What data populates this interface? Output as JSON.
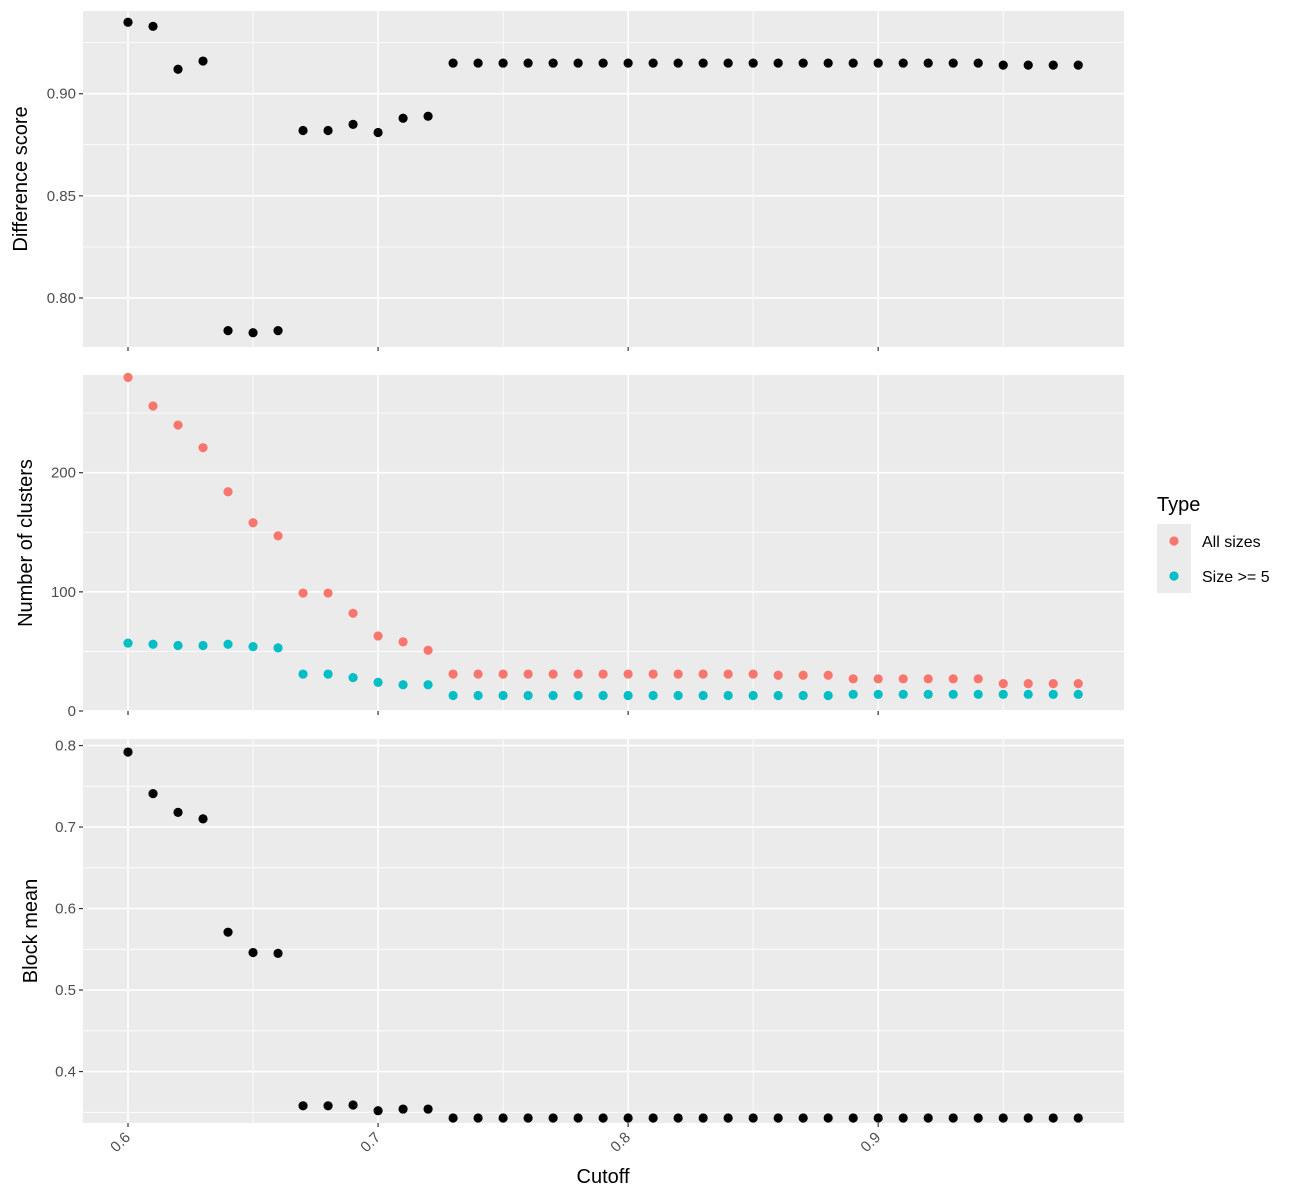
{
  "chart_data": {
    "type": "scatter",
    "xlabel": "Cutoff",
    "xlim": [
      0.582,
      0.9983
    ],
    "x_ticks": [
      0.6,
      0.7,
      0.8,
      0.9
    ],
    "x_tick_labels": [
      "0.6",
      "0.7",
      "0.8",
      "0.9"
    ],
    "x": [
      0.6,
      0.61,
      0.62,
      0.63,
      0.64,
      0.65,
      0.66,
      0.67,
      0.68,
      0.69,
      0.7,
      0.71,
      0.72,
      0.73,
      0.74,
      0.75,
      0.76,
      0.77,
      0.78,
      0.79,
      0.8,
      0.81,
      0.82,
      0.83,
      0.84,
      0.85,
      0.86,
      0.87,
      0.88,
      0.89,
      0.9,
      0.91,
      0.92,
      0.93,
      0.94,
      0.95,
      0.96,
      0.97,
      0.98
    ],
    "grid": true,
    "background": "#ebebeb",
    "panels": [
      {
        "ylabel": "Difference score",
        "ylim": [
          0.776,
          0.9405
        ],
        "y_ticks": [
          0.8,
          0.85,
          0.9
        ],
        "y_tick_labels": [
          "0.80",
          "0.85",
          "0.90"
        ],
        "series": [
          {
            "color": "#000000",
            "values": [
              0.935,
              0.933,
              0.912,
              0.916,
              0.784,
              0.783,
              0.784,
              0.882,
              0.882,
              0.885,
              0.881,
              0.888,
              0.889,
              0.915,
              0.915,
              0.915,
              0.915,
              0.915,
              0.915,
              0.915,
              0.915,
              0.915,
              0.915,
              0.915,
              0.915,
              0.915,
              0.915,
              0.915,
              0.915,
              0.915,
              0.915,
              0.915,
              0.915,
              0.915,
              0.915,
              0.914,
              0.914,
              0.914,
              0.914
            ]
          }
        ]
      },
      {
        "ylabel": "Number of clusters",
        "ylim": [
          0,
          282
        ],
        "y_ticks": [
          0,
          100,
          200
        ],
        "y_tick_labels": [
          "0",
          "100",
          "200"
        ],
        "series": [
          {
            "name": "All sizes",
            "color": "#f8766d",
            "values": [
              280,
              256,
              240,
              221,
              184,
              158,
              147,
              99,
              99,
              82,
              63,
              58,
              51,
              31,
              31,
              31,
              31,
              31,
              31,
              31,
              31,
              31,
              31,
              31,
              31,
              31,
              30,
              30,
              30,
              27,
              27,
              27,
              27,
              27,
              27,
              23,
              23,
              23,
              23
            ]
          },
          {
            "name": "Size >= 5",
            "color": "#00bfc4",
            "values": [
              57,
              56,
              55,
              55,
              56,
              54,
              53,
              31,
              31,
              28,
              24,
              22,
              22,
              13,
              13,
              13,
              13,
              13,
              13,
              13,
              13,
              13,
              13,
              13,
              13,
              13,
              13,
              13,
              13,
              14,
              14,
              14,
              14,
              14,
              14,
              14,
              14,
              14,
              14
            ]
          }
        ]
      },
      {
        "ylabel": "Block mean",
        "ylim": [
          0.3369,
          0.808
        ],
        "y_ticks": [
          0.4,
          0.5,
          0.6,
          0.7,
          0.8
        ],
        "y_tick_labels": [
          "0.4",
          "0.5",
          "0.6",
          "0.7",
          "0.8"
        ],
        "series": [
          {
            "color": "#000000",
            "values": [
              0.792,
              0.741,
              0.718,
              0.71,
              0.571,
              0.546,
              0.545,
              0.358,
              0.358,
              0.359,
              0.352,
              0.354,
              0.354,
              0.343,
              0.343,
              0.343,
              0.343,
              0.343,
              0.343,
              0.343,
              0.343,
              0.343,
              0.343,
              0.343,
              0.343,
              0.343,
              0.343,
              0.343,
              0.343,
              0.343,
              0.343,
              0.343,
              0.343,
              0.343,
              0.343,
              0.343,
              0.343,
              0.343,
              0.343
            ]
          }
        ]
      }
    ],
    "legend": {
      "title": "Type",
      "position": "right",
      "entries": [
        {
          "label": "All sizes",
          "color": "#f8766d"
        },
        {
          "label": "Size >= 5",
          "color": "#00bfc4"
        }
      ]
    }
  }
}
